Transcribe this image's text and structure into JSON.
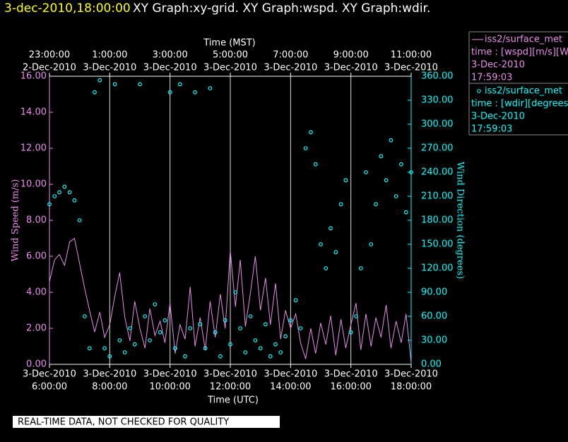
{
  "chart_data": {
    "type": "line",
    "header": {
      "timestamp": "3-dec-2010,18:00:00",
      "graphs": "XY Graph:xy-grid.  XY Graph:wspd.  XY Graph:wdir."
    },
    "top_axis_title": "Time (MST)",
    "xlabel": "Time (UTC)",
    "ylabel": "Wind Speed (m/s)",
    "y2label": "Wind Direction (degrees)",
    "disclaimer": "REAL-TIME DATA, NOT CHECKED FOR QUALITY",
    "grid": true,
    "xlim": [
      6,
      18
    ],
    "xticks": [
      {
        "value": 6,
        "label": [
          "3-Dec-2010",
          "6:00:00"
        ]
      },
      {
        "value": 8,
        "label": [
          "3-Dec-2010",
          "8:00:00"
        ]
      },
      {
        "value": 10,
        "label": [
          "3-Dec-2010",
          "10:00:00"
        ]
      },
      {
        "value": 12,
        "label": [
          "3-Dec-2010",
          "12:00:00"
        ]
      },
      {
        "value": 14,
        "label": [
          "3-Dec-2010",
          "14:00:00"
        ]
      },
      {
        "value": 16,
        "label": [
          "3-Dec-2010",
          "16:00:00"
        ]
      },
      {
        "value": 18,
        "label": [
          "3-Dec-2010",
          "18:00:00"
        ]
      }
    ],
    "x2ticks": [
      {
        "value": 6,
        "label": [
          "23:00:00",
          "2-Dec-2010"
        ]
      },
      {
        "value": 8,
        "label": [
          "1:00:00",
          "3-Dec-2010"
        ]
      },
      {
        "value": 10,
        "label": [
          "3:00:00",
          "3-Dec-2010"
        ]
      },
      {
        "value": 12,
        "label": [
          "5:00:00",
          "3-Dec-2010"
        ]
      },
      {
        "value": 14,
        "label": [
          "7:00:00",
          "3-Dec-2010"
        ]
      },
      {
        "value": 16,
        "label": [
          "9:00:00",
          "3-Dec-2010"
        ]
      },
      {
        "value": 18,
        "label": [
          "11:00:00",
          "3-Dec-2010"
        ]
      }
    ],
    "ylim": [
      0,
      16
    ],
    "yticks": [
      {
        "value": 0,
        "label": "0.00"
      },
      {
        "value": 2,
        "label": "2.00"
      },
      {
        "value": 4,
        "label": "4.00"
      },
      {
        "value": 6,
        "label": "6.00"
      },
      {
        "value": 8,
        "label": "8.00"
      },
      {
        "value": 10,
        "label": "10.00"
      },
      {
        "value": 12,
        "label": "12.00"
      },
      {
        "value": 14,
        "label": "14.00"
      },
      {
        "value": 16,
        "label": "16.00"
      }
    ],
    "y2lim": [
      0,
      360
    ],
    "y2ticks": [
      {
        "value": 0,
        "label": "0.00"
      },
      {
        "value": 30,
        "label": "30.00"
      },
      {
        "value": 60,
        "label": "60.00"
      },
      {
        "value": 90,
        "label": "90.00"
      },
      {
        "value": 120,
        "label": "120.00"
      },
      {
        "value": 150,
        "label": "150.00"
      },
      {
        "value": 180,
        "label": "180.00"
      },
      {
        "value": 210,
        "label": "210.00"
      },
      {
        "value": 240,
        "label": "240.00"
      },
      {
        "value": 270,
        "label": "270.00"
      },
      {
        "value": 300,
        "label": "300.00"
      },
      {
        "value": 330,
        "label": "330.00"
      },
      {
        "value": 360,
        "label": "360.00"
      }
    ],
    "x": [
      6.0,
      6.17,
      6.33,
      6.5,
      6.67,
      6.83,
      7.0,
      7.17,
      7.33,
      7.5,
      7.67,
      7.83,
      8.0,
      8.17,
      8.33,
      8.5,
      8.67,
      8.83,
      9.0,
      9.17,
      9.33,
      9.5,
      9.67,
      9.83,
      10.0,
      10.17,
      10.33,
      10.5,
      10.67,
      10.83,
      11.0,
      11.17,
      11.33,
      11.5,
      11.67,
      11.83,
      12.0,
      12.17,
      12.33,
      12.5,
      12.67,
      12.83,
      13.0,
      13.17,
      13.33,
      13.5,
      13.67,
      13.83,
      14.0,
      14.17,
      14.33,
      14.5,
      14.67,
      14.83,
      15.0,
      15.17,
      15.33,
      15.5,
      15.67,
      15.83,
      16.0,
      16.17,
      16.33,
      16.5,
      16.67,
      16.83,
      17.0,
      17.17,
      17.33,
      17.5,
      17.67,
      17.83,
      18.0
    ],
    "series": [
      {
        "name": "iss2/surface_met",
        "type": "line",
        "color": "#e88ee8",
        "legend": [
          "time : [wspd][m/s][Wind",
          "3-Dec-2010",
          "17:59:03"
        ],
        "values": [
          4.6,
          5.8,
          6.1,
          5.5,
          6.8,
          7.0,
          5.6,
          4.2,
          3.0,
          1.8,
          2.9,
          1.5,
          2.2,
          3.8,
          5.1,
          2.6,
          1.3,
          3.5,
          2.0,
          0.9,
          3.1,
          1.6,
          2.4,
          1.2,
          3.4,
          0.6,
          2.2,
          1.4,
          4.3,
          1.0,
          2.6,
          0.8,
          3.5,
          1.5,
          3.9,
          2.0,
          6.3,
          3.2,
          5.8,
          2.1,
          4.0,
          6.0,
          3.0,
          4.8,
          2.2,
          4.5,
          1.4,
          3.0,
          2.0,
          2.8,
          1.2,
          0.3,
          2.0,
          0.6,
          2.3,
          1.1,
          2.7,
          0.5,
          2.5,
          0.9,
          2.2,
          3.4,
          0.8,
          2.8,
          1.0,
          2.6,
          1.5,
          3.3,
          0.9,
          2.4,
          1.2,
          2.8,
          0.1
        ]
      },
      {
        "name": "iss2/surface_met",
        "type": "scatter",
        "axis": "y2",
        "color": "#00ffff",
        "legend": [
          "time : [wdir][degrees][V",
          "3-Dec-2010",
          "17:59:03"
        ],
        "values": [
          200,
          210,
          215,
          222,
          215,
          205,
          180,
          60,
          20,
          340,
          355,
          20,
          10,
          350,
          30,
          15,
          45,
          25,
          350,
          60,
          30,
          75,
          40,
          55,
          340,
          20,
          350,
          10,
          45,
          340,
          50,
          20,
          345,
          40,
          10,
          55,
          25,
          90,
          45,
          15,
          60,
          30,
          20,
          50,
          10,
          25,
          15,
          35,
          55,
          80,
          45,
          270,
          290,
          250,
          150,
          120,
          170,
          140,
          200,
          230,
          40,
          60,
          120,
          240,
          150,
          200,
          260,
          230,
          280,
          210,
          250,
          190,
          240
        ]
      }
    ]
  }
}
